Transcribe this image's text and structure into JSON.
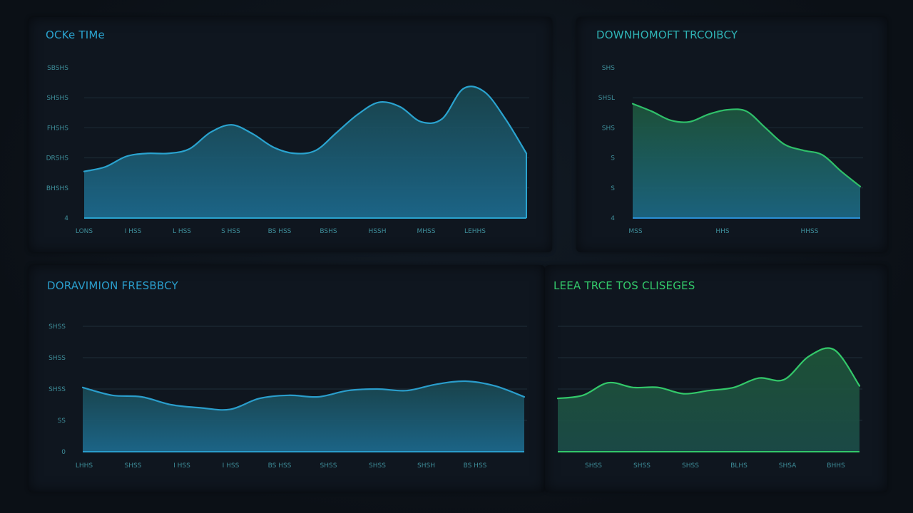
{
  "chart_data": [
    {
      "type": "area",
      "title": "OCKe TIMe",
      "accent": "#2aa3cf",
      "fill_top": "#1a4a52",
      "fill_bottom": "#1d6d92",
      "y_tick_labels": [
        "SBSHS",
        "SHSHS",
        "FHSHS",
        "DRSHS",
        "BHSHS",
        "4"
      ],
      "x_tick_labels": [
        "LONS",
        "I HSS",
        "L HSS",
        "S HSS",
        "BS HSS",
        "BSHS",
        "HSSH",
        "MHSS",
        "LEHHS"
      ],
      "ylim": [
        0,
        5
      ],
      "y_values": [
        1.55,
        1.7,
        2.05,
        2.15,
        2.15,
        2.3,
        2.85,
        3.1,
        2.8,
        2.35,
        2.15,
        2.25,
        2.85,
        3.45,
        3.85,
        3.7,
        3.2,
        3.3,
        4.3,
        4.2,
        3.3,
        2.15
      ]
    },
    {
      "type": "area",
      "title": "DOWNHOMOFT TRCOIBCY",
      "accent": "#2fc06a",
      "fill_top": "#1e5a3c",
      "fill_bottom": "#1c6a88",
      "y_tick_labels": [
        "SHS",
        "SHSL",
        "SHS",
        "S",
        "S",
        "4"
      ],
      "x_tick_labels": [
        "MSS",
        "HHS",
        "HHSS"
      ],
      "ylim": [
        0,
        5
      ],
      "y_values": [
        3.8,
        3.55,
        3.25,
        3.2,
        3.45,
        3.6,
        3.55,
        3.0,
        2.45,
        2.25,
        2.1,
        1.55,
        1.05
      ]
    },
    {
      "type": "area",
      "title": "DORAVIMION FRESBBCY",
      "accent": "#2a9dcb",
      "fill_top": "#1a4a52",
      "fill_bottom": "#1d6d92",
      "y_tick_labels": [
        "SHSS",
        "SHSS",
        "SHSS",
        "SS",
        "0"
      ],
      "x_tick_labels": [
        "LHHS",
        "SHSS",
        "I HSS",
        "I HSS",
        "BS HSS",
        "SHSS",
        "SHSS",
        "SHSH",
        "BS HSS"
      ],
      "ylim": [
        0,
        4
      ],
      "y_values": [
        2.05,
        1.8,
        1.75,
        1.5,
        1.4,
        1.35,
        1.7,
        1.8,
        1.75,
        1.95,
        2.0,
        1.95,
        2.15,
        2.25,
        2.1,
        1.75
      ]
    },
    {
      "type": "area",
      "title": "LEEA TRCE TOS CLISEGES",
      "accent": "#33c86a",
      "fill_top": "#1f5a3a",
      "fill_bottom": "#1c4e4a",
      "y_tick_labels": [],
      "x_tick_labels": [
        "SHSS",
        "SHSS",
        "SHSS",
        "BLHS",
        "SHSA",
        "BHHS"
      ],
      "ylim": [
        0,
        4
      ],
      "y_values": [
        1.7,
        1.8,
        2.2,
        2.05,
        2.05,
        1.85,
        1.95,
        2.05,
        2.35,
        2.3,
        3.05,
        3.25,
        2.1
      ]
    }
  ]
}
